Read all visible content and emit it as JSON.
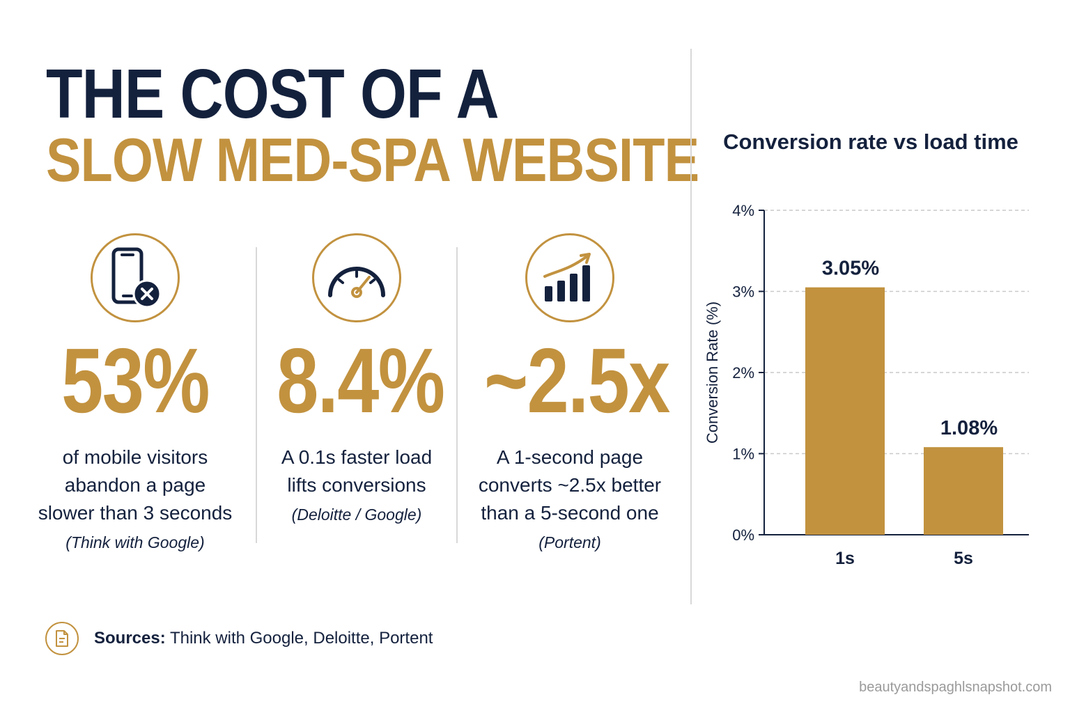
{
  "headline": {
    "line1": "THE COST OF A",
    "line2": "SLOW MED-SPA WEBSITE"
  },
  "stats": [
    {
      "icon": "phone-x-icon",
      "value": "53%",
      "desc": [
        "of mobile visitors",
        "abandon a page",
        "slower than 3 seconds"
      ],
      "source": "(Think with Google)"
    },
    {
      "icon": "speedometer-icon",
      "value": "8.4%",
      "desc": [
        "A 0.1s faster load",
        "lifts conversions"
      ],
      "source": "(Deloitte / Google)"
    },
    {
      "icon": "growth-chart-icon",
      "value": "~2.5x",
      "desc": [
        "A 1-second page",
        "converts ~2.5x better",
        "than a 5-second one"
      ],
      "source": "(Portent)"
    }
  ],
  "chart_data": {
    "type": "bar",
    "title": "Conversion rate vs load time",
    "xlabel": "",
    "ylabel": "Conversion Rate (%)",
    "categories": [
      "1s",
      "5s"
    ],
    "values": [
      3.05,
      1.08
    ],
    "data_labels": [
      "3.05%",
      "1.08%"
    ],
    "ylim": [
      0,
      4
    ],
    "yticks": [
      0,
      1,
      2,
      3,
      4
    ],
    "ytick_labels": [
      "0%",
      "1%",
      "2%",
      "3%",
      "4%"
    ],
    "grid": "dashed-horizontal",
    "bar_color": "#c2923f",
    "legend": "none"
  },
  "footer": {
    "icon": "document-icon",
    "sources_label": "Sources:",
    "sources_text": " Think with Google, Deloitte, Portent",
    "watermark": "beautyandspaghlsnapshot.com"
  },
  "colors": {
    "navy": "#14213d",
    "gold": "#c2923f",
    "divider": "#d8d8d8"
  }
}
